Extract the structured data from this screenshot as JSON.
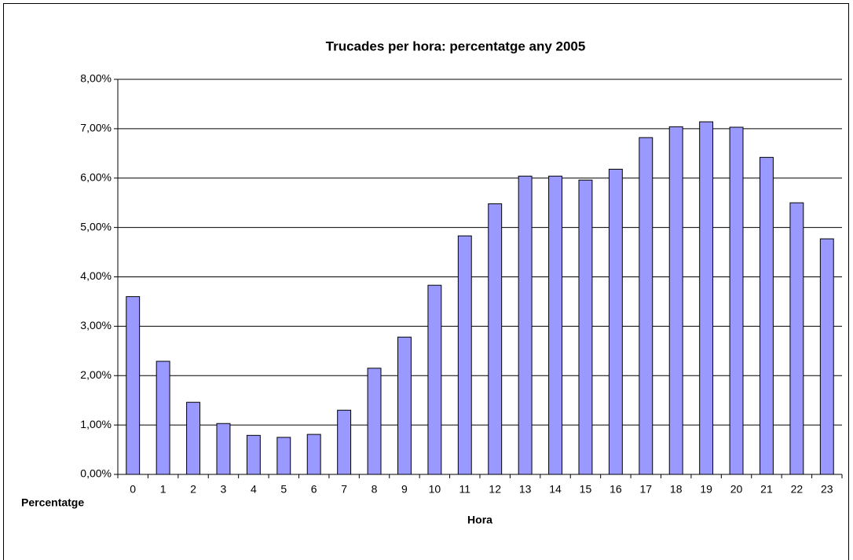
{
  "chart_data": {
    "type": "bar",
    "title": "Trucades per hora: percentatge any 2005",
    "x_label": "Hora",
    "categories": [
      "0",
      "1",
      "2",
      "3",
      "4",
      "5",
      "6",
      "7",
      "8",
      "9",
      "10",
      "11",
      "12",
      "13",
      "14",
      "15",
      "16",
      "17",
      "18",
      "19",
      "20",
      "21",
      "22",
      "23"
    ],
    "series": [
      {
        "name": "Percentatge",
        "color": "#9999ff",
        "values": [
          3.6,
          2.29,
          1.46,
          1.03,
          0.79,
          0.75,
          0.81,
          1.3,
          2.15,
          2.78,
          3.83,
          4.83,
          5.48,
          6.04,
          6.04,
          5.96,
          6.18,
          6.82,
          7.04,
          7.14,
          7.03,
          6.42,
          5.5,
          4.77
        ]
      }
    ],
    "ylim": [
      0,
      8
    ],
    "yticks": [
      {
        "value": 0,
        "label": "0,00%"
      },
      {
        "value": 1,
        "label": "1,00%"
      },
      {
        "value": 2,
        "label": "2,00%"
      },
      {
        "value": 3,
        "label": "3,00%"
      },
      {
        "value": 4,
        "label": "4,00%"
      },
      {
        "value": 5,
        "label": "5,00%"
      },
      {
        "value": 6,
        "label": "6,00%"
      },
      {
        "value": 7,
        "label": "7,00%"
      },
      {
        "value": 8,
        "label": "8,00%"
      }
    ],
    "grid": true
  }
}
